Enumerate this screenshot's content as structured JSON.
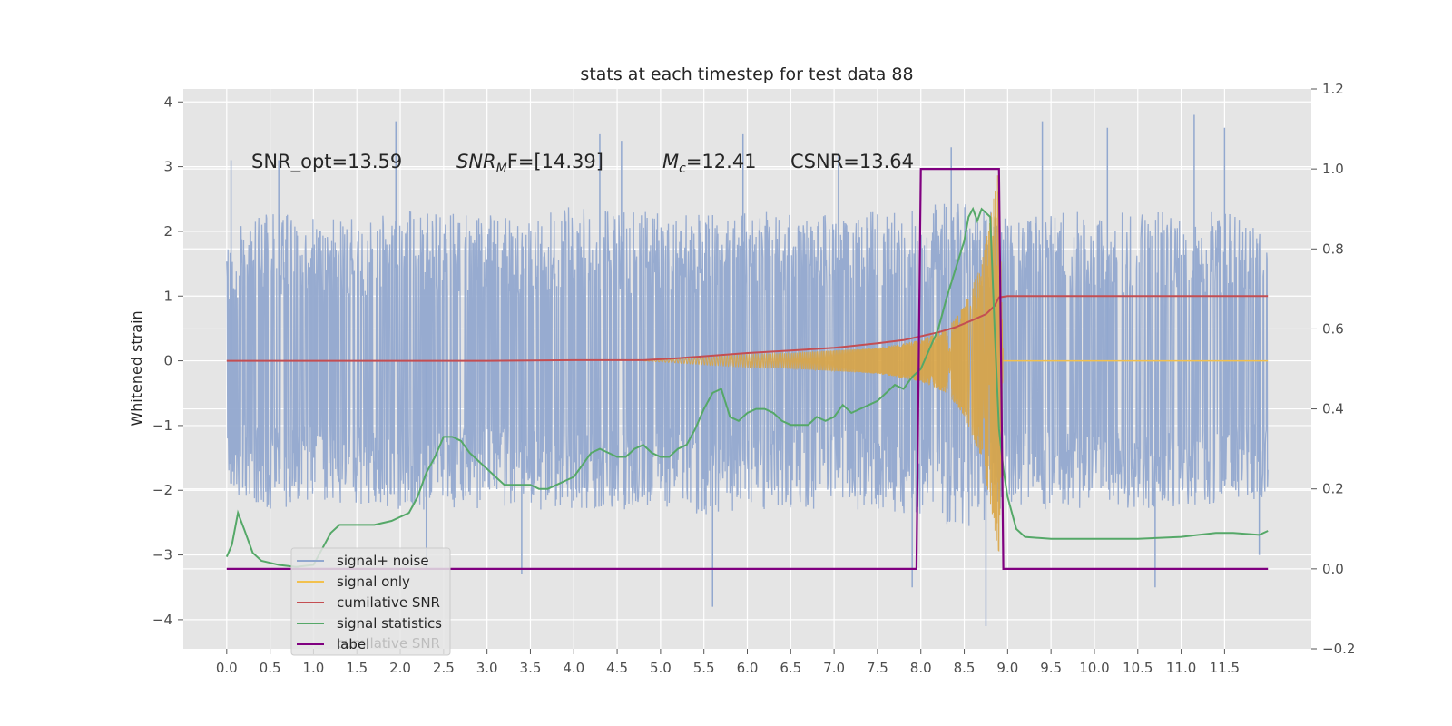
{
  "chart_data": {
    "type": "line",
    "title": "stats at each timestep for test data 88",
    "ylabel": "Whitened strain",
    "xlabel": "",
    "xlim": [
      -0.5,
      12.5
    ],
    "ylim": [
      -4.45,
      4.2
    ],
    "ylim_right": [
      -0.2,
      1.2
    ],
    "grid": true,
    "x_ticks": [
      0.0,
      0.5,
      1.0,
      1.5,
      2.0,
      2.5,
      3.0,
      3.5,
      4.0,
      4.5,
      5.0,
      5.5,
      6.0,
      6.5,
      7.0,
      7.5,
      8.0,
      8.5,
      9.0,
      9.5,
      10.0,
      10.5,
      11.0,
      11.5
    ],
    "x_tick_labels": [
      "0.0",
      "0.5",
      "1.0",
      "1.5",
      "2.0",
      "2.5",
      "3.0",
      "3.5",
      "4.0",
      "4.5",
      "5.0",
      "5.5",
      "6.0",
      "6.5",
      "7.0",
      "7.5",
      "8.0",
      "8.5",
      "9.0",
      "9.5",
      "10.0",
      "10.5",
      "11.0",
      "11.5"
    ],
    "y_ticks_left": [
      -4,
      -3,
      -2,
      -1,
      0,
      1,
      2,
      3,
      4
    ],
    "y_tick_labels_left": [
      "−4",
      "−3",
      "−2",
      "−1",
      "0",
      "1",
      "2",
      "3",
      "4"
    ],
    "y_ticks_right": [
      -0.2,
      0.0,
      0.2,
      0.4,
      0.6,
      0.8,
      1.0,
      1.2
    ],
    "y_tick_labels_right": [
      "−0.2",
      "0.0",
      "0.2",
      "0.4",
      "0.6",
      "0.8",
      "1.0",
      "1.2"
    ],
    "annotations": {
      "snr_opt": "SNR_opt=13.59",
      "snr_mf_prefix": "SNR",
      "snr_mf_sub": "M",
      "snr_mf_suffix": "F=[14.39]",
      "mc_prefix": "M",
      "mc_sub": "c",
      "mc_suffix": "=12.41",
      "csnr": "CSNR=13.64"
    },
    "legend": {
      "position": "lower-left",
      "entries": [
        {
          "label": "signal+ noise",
          "color": "#92a8cf"
        },
        {
          "label": "signal only",
          "color": "#f2c14e"
        },
        {
          "label": "cumilative SNR",
          "color": "#c44e52"
        },
        {
          "label": "signal statistics",
          "color": "#55a868"
        },
        {
          "label": "label",
          "color": "#800080"
        }
      ],
      "hidden_entry": "cumilative SNR"
    },
    "series": [
      {
        "name": "signal+ noise",
        "axis": "left",
        "color": "#92a8cf",
        "x_range": [
          0.0,
          12.0
        ],
        "envelope_upper": [
          [
            0.0,
            2.0
          ],
          [
            0.5,
            2.3
          ],
          [
            1.0,
            2.2
          ],
          [
            1.5,
            2.2
          ],
          [
            2.0,
            2.4
          ],
          [
            2.5,
            2.3
          ],
          [
            3.0,
            2.3
          ],
          [
            3.5,
            2.2
          ],
          [
            4.0,
            2.4
          ],
          [
            4.5,
            2.3
          ],
          [
            5.0,
            2.3
          ],
          [
            5.5,
            2.3
          ],
          [
            6.0,
            2.3
          ],
          [
            6.5,
            2.3
          ],
          [
            7.0,
            2.3
          ],
          [
            7.5,
            2.3
          ],
          [
            8.0,
            2.4
          ],
          [
            8.5,
            2.5
          ],
          [
            9.0,
            2.2
          ],
          [
            9.5,
            2.3
          ],
          [
            10.0,
            2.3
          ],
          [
            10.5,
            2.3
          ],
          [
            11.0,
            2.3
          ],
          [
            11.5,
            2.3
          ],
          [
            12.0,
            2.1
          ]
        ],
        "envelope_lower": [
          [
            0.0,
            -2.0
          ],
          [
            0.5,
            -2.3
          ],
          [
            1.0,
            -2.2
          ],
          [
            1.5,
            -2.2
          ],
          [
            2.0,
            -2.3
          ],
          [
            2.5,
            -2.3
          ],
          [
            3.0,
            -2.3
          ],
          [
            3.5,
            -2.3
          ],
          [
            4.0,
            -2.3
          ],
          [
            4.5,
            -2.3
          ],
          [
            5.0,
            -2.3
          ],
          [
            5.5,
            -2.4
          ],
          [
            6.0,
            -2.3
          ],
          [
            6.5,
            -2.3
          ],
          [
            7.0,
            -2.3
          ],
          [
            7.5,
            -2.3
          ],
          [
            8.0,
            -2.4
          ],
          [
            8.5,
            -2.6
          ],
          [
            9.0,
            -2.3
          ],
          [
            9.5,
            -2.3
          ],
          [
            10.0,
            -2.3
          ],
          [
            10.5,
            -2.3
          ],
          [
            11.0,
            -2.3
          ],
          [
            11.5,
            -2.3
          ],
          [
            12.0,
            -2.1
          ]
        ],
        "spikes": [
          [
            0.05,
            3.1
          ],
          [
            0.6,
            3.1
          ],
          [
            1.95,
            3.7
          ],
          [
            2.3,
            -3.2
          ],
          [
            3.4,
            -3.3
          ],
          [
            4.3,
            3.5
          ],
          [
            4.55,
            3.4
          ],
          [
            5.6,
            -3.8
          ],
          [
            5.95,
            3.5
          ],
          [
            7.05,
            3.2
          ],
          [
            7.9,
            -3.5
          ],
          [
            8.35,
            3.3
          ],
          [
            8.75,
            -4.1
          ],
          [
            9.4,
            3.7
          ],
          [
            10.15,
            3.6
          ],
          [
            10.7,
            -3.5
          ],
          [
            11.15,
            3.8
          ],
          [
            11.5,
            3.6
          ],
          [
            11.9,
            -3.0
          ]
        ]
      },
      {
        "name": "signal only",
        "axis": "left",
        "color": "#f2c14e",
        "description": "chirp envelope growing toward merger",
        "envelope": [
          [
            4.8,
            0.0
          ],
          [
            5.5,
            0.06
          ],
          [
            6.0,
            0.1
          ],
          [
            6.5,
            0.12
          ],
          [
            7.0,
            0.16
          ],
          [
            7.5,
            0.2
          ],
          [
            7.8,
            0.27
          ],
          [
            8.0,
            0.32
          ],
          [
            8.3,
            0.5
          ],
          [
            8.5,
            0.85
          ],
          [
            8.7,
            1.5
          ],
          [
            8.8,
            2.2
          ],
          [
            8.9,
            3.0
          ],
          [
            8.95,
            0.0
          ],
          [
            12.0,
            0.0
          ]
        ]
      },
      {
        "name": "cumilative SNR",
        "axis": "left",
        "color": "#c44e52",
        "x": [
          0.0,
          1.0,
          2.0,
          3.0,
          4.0,
          4.8,
          5.2,
          5.6,
          6.0,
          6.5,
          7.0,
          7.5,
          7.8,
          8.0,
          8.2,
          8.4,
          8.6,
          8.75,
          8.85,
          8.9,
          9.0,
          10.0,
          11.0,
          12.0
        ],
        "values": [
          0.0,
          0.0,
          0.0,
          0.0,
          0.01,
          0.01,
          0.04,
          0.08,
          0.12,
          0.16,
          0.2,
          0.27,
          0.32,
          0.38,
          0.44,
          0.52,
          0.63,
          0.72,
          0.85,
          0.98,
          1.0,
          1.0,
          1.0,
          1.0
        ]
      },
      {
        "name": "signal statistics",
        "axis": "right",
        "color": "#55a868",
        "x": [
          0.0,
          0.06,
          0.13,
          0.2,
          0.3,
          0.4,
          0.5,
          0.6,
          0.8,
          1.0,
          1.1,
          1.2,
          1.3,
          1.5,
          1.7,
          1.9,
          2.0,
          2.1,
          2.2,
          2.3,
          2.4,
          2.5,
          2.6,
          2.7,
          2.8,
          2.9,
          3.0,
          3.1,
          3.2,
          3.3,
          3.4,
          3.5,
          3.6,
          3.7,
          3.8,
          3.9,
          4.0,
          4.1,
          4.2,
          4.3,
          4.4,
          4.5,
          4.6,
          4.7,
          4.8,
          4.9,
          5.0,
          5.1,
          5.2,
          5.3,
          5.4,
          5.5,
          5.6,
          5.7,
          5.8,
          5.9,
          6.0,
          6.1,
          6.2,
          6.3,
          6.4,
          6.5,
          6.6,
          6.7,
          6.8,
          6.9,
          7.0,
          7.1,
          7.2,
          7.3,
          7.4,
          7.5,
          7.6,
          7.7,
          7.8,
          7.9,
          8.0,
          8.1,
          8.2,
          8.3,
          8.4,
          8.5,
          8.55,
          8.6,
          8.65,
          8.7,
          8.8,
          8.85,
          8.9,
          8.95,
          9.0,
          9.05,
          9.1,
          9.2,
          9.5,
          10.0,
          10.5,
          11.0,
          11.2,
          11.4,
          11.6,
          11.9,
          12.0
        ],
        "values": [
          0.03,
          0.06,
          0.14,
          0.1,
          0.04,
          0.02,
          0.015,
          0.01,
          0.005,
          0.01,
          0.05,
          0.09,
          0.11,
          0.11,
          0.11,
          0.12,
          0.13,
          0.14,
          0.18,
          0.24,
          0.28,
          0.33,
          0.33,
          0.32,
          0.29,
          0.27,
          0.25,
          0.23,
          0.21,
          0.21,
          0.21,
          0.21,
          0.2,
          0.2,
          0.21,
          0.22,
          0.23,
          0.26,
          0.29,
          0.3,
          0.29,
          0.28,
          0.28,
          0.3,
          0.31,
          0.29,
          0.28,
          0.28,
          0.3,
          0.31,
          0.35,
          0.4,
          0.44,
          0.45,
          0.38,
          0.37,
          0.39,
          0.4,
          0.4,
          0.39,
          0.37,
          0.36,
          0.36,
          0.36,
          0.38,
          0.37,
          0.38,
          0.41,
          0.39,
          0.4,
          0.41,
          0.42,
          0.44,
          0.46,
          0.45,
          0.48,
          0.5,
          0.55,
          0.6,
          0.68,
          0.75,
          0.82,
          0.88,
          0.9,
          0.87,
          0.9,
          0.88,
          0.6,
          0.35,
          0.25,
          0.18,
          0.14,
          0.1,
          0.08,
          0.075,
          0.075,
          0.075,
          0.08,
          0.085,
          0.09,
          0.09,
          0.085,
          0.095
        ]
      },
      {
        "name": "label",
        "axis": "right",
        "color": "#800080",
        "x": [
          0.0,
          7.95,
          8.0,
          8.9,
          8.95,
          12.0
        ],
        "values": [
          0.0,
          0.0,
          1.0,
          1.0,
          0.0,
          0.0
        ]
      }
    ]
  }
}
